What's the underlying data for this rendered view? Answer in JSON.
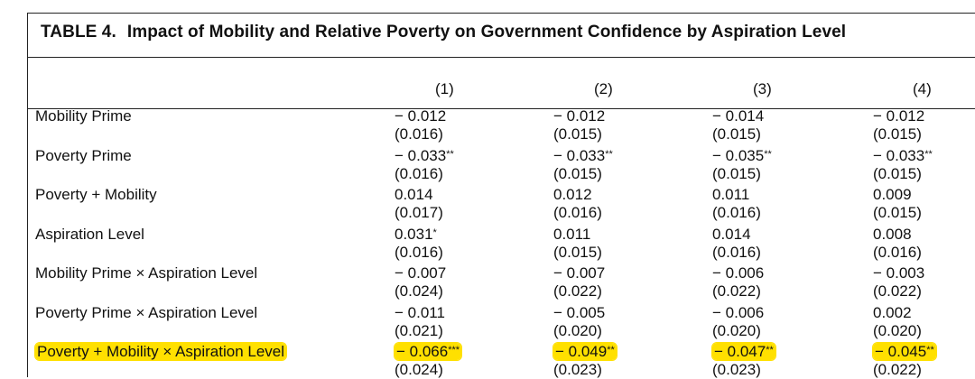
{
  "table": {
    "number": "TABLE 4.",
    "title": "Impact of Mobility and Relative Poverty on Government Confidence by Aspiration Level",
    "columns": [
      "(1)",
      "(2)",
      "(3)",
      "(4)"
    ],
    "rows": [
      {
        "label": "Mobility Prime",
        "highlighted": false,
        "coef": [
          [
            "− 0.012",
            ""
          ],
          [
            "− 0.012",
            ""
          ],
          [
            "− 0.014",
            ""
          ],
          [
            "− 0.012",
            ""
          ]
        ],
        "se": [
          "(0.016)",
          "(0.015)",
          "(0.015)",
          "(0.015)"
        ]
      },
      {
        "label": "Poverty Prime",
        "highlighted": false,
        "coef": [
          [
            "− 0.033",
            "**"
          ],
          [
            "− 0.033",
            "**"
          ],
          [
            "− 0.035",
            "**"
          ],
          [
            "− 0.033",
            "**"
          ]
        ],
        "se": [
          "(0.016)",
          "(0.015)",
          "(0.015)",
          "(0.015)"
        ]
      },
      {
        "label": "Poverty + Mobility",
        "highlighted": false,
        "coef": [
          [
            "0.014",
            ""
          ],
          [
            "0.012",
            ""
          ],
          [
            "0.011",
            ""
          ],
          [
            "0.009",
            ""
          ]
        ],
        "se": [
          "(0.017)",
          "(0.016)",
          "(0.016)",
          "(0.015)"
        ]
      },
      {
        "label": "Aspiration Level",
        "highlighted": false,
        "coef": [
          [
            "0.031",
            "*"
          ],
          [
            "0.011",
            ""
          ],
          [
            "0.014",
            ""
          ],
          [
            "0.008",
            ""
          ]
        ],
        "se": [
          "(0.016)",
          "(0.015)",
          "(0.016)",
          "(0.016)"
        ]
      },
      {
        "label": "Mobility Prime × Aspiration Level",
        "highlighted": false,
        "coef": [
          [
            "− 0.007",
            ""
          ],
          [
            "− 0.007",
            ""
          ],
          [
            "− 0.006",
            ""
          ],
          [
            "− 0.003",
            ""
          ]
        ],
        "se": [
          "(0.024)",
          "(0.022)",
          "(0.022)",
          "(0.022)"
        ]
      },
      {
        "label": "Poverty Prime × Aspiration Level",
        "highlighted": false,
        "coef": [
          [
            "− 0.011",
            ""
          ],
          [
            "− 0.005",
            ""
          ],
          [
            "− 0.006",
            ""
          ],
          [
            "0.002",
            ""
          ]
        ],
        "se": [
          "(0.021)",
          "(0.020)",
          "(0.020)",
          "(0.020)"
        ]
      },
      {
        "label": "Poverty + Mobility × Aspiration Level",
        "highlighted": true,
        "coef": [
          [
            "− 0.066",
            "***"
          ],
          [
            "− 0.049",
            "**"
          ],
          [
            "− 0.047",
            "**"
          ],
          [
            "− 0.045",
            "**"
          ]
        ],
        "se": [
          "(0.024)",
          "(0.023)",
          "(0.023)",
          "(0.022)"
        ]
      }
    ],
    "highlight_color": "#ffe000"
  }
}
